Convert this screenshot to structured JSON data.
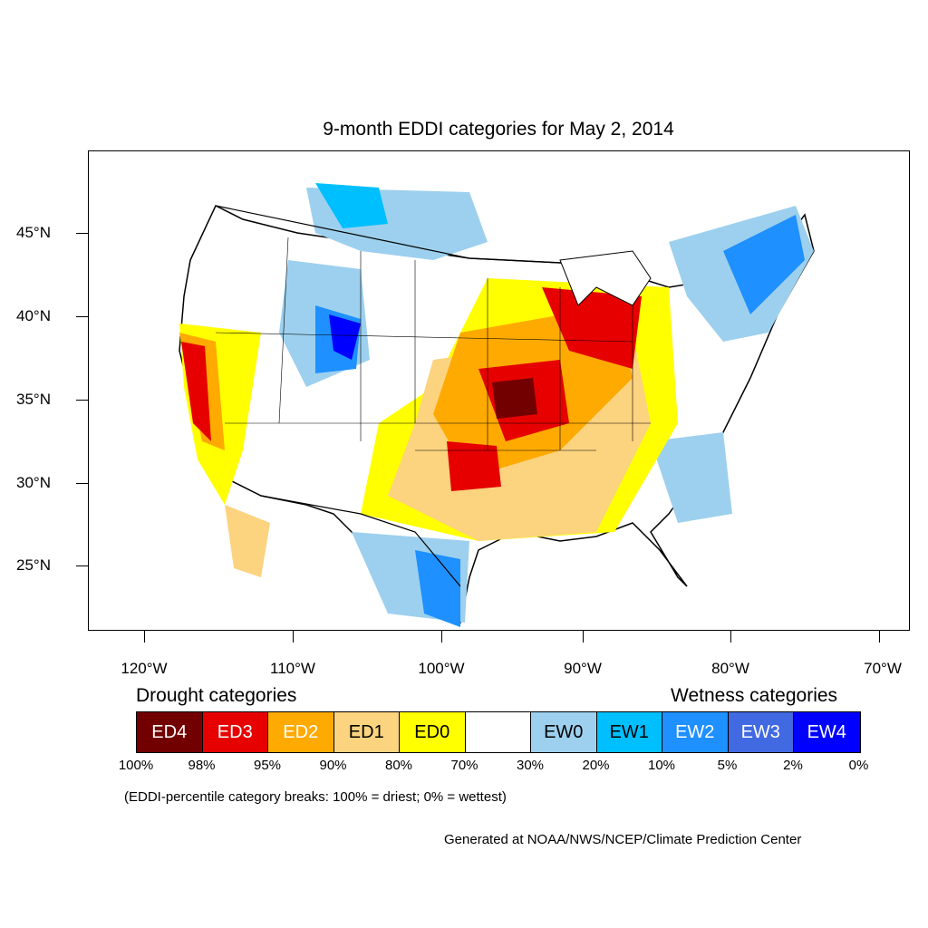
{
  "title": "9-month EDDI categories for May 2, 2014",
  "lat_labels": [
    "45°N",
    "40°N",
    "35°N",
    "30°N",
    "25°N"
  ],
  "lon_labels": [
    "120°W",
    "110°W",
    "100°W",
    "90°W",
    "80°W",
    "70°W"
  ],
  "legend": {
    "drought_heading": "Drought categories",
    "wetness_heading": "Wetness categories",
    "categories": [
      {
        "label": "ED4",
        "color": "#730000",
        "text_color": "#ffffff"
      },
      {
        "label": "ED3",
        "color": "#e60000",
        "text_color": "#ffffff"
      },
      {
        "label": "ED2",
        "color": "#ffaa00",
        "text_color": "#ffffff"
      },
      {
        "label": "ED1",
        "color": "#fcd37f",
        "text_color": "#000000"
      },
      {
        "label": "ED0",
        "color": "#ffff00",
        "text_color": "#000000"
      },
      {
        "label": "",
        "color": "#ffffff",
        "text_color": "#000000"
      },
      {
        "label": "EW0",
        "color": "#9dd0ee",
        "text_color": "#000000"
      },
      {
        "label": "EW1",
        "color": "#00bfff",
        "text_color": "#000000"
      },
      {
        "label": "EW2",
        "color": "#1e90ff",
        "text_color": "#ffffff"
      },
      {
        "label": "EW3",
        "color": "#4169e1",
        "text_color": "#ffffff"
      },
      {
        "label": "EW4",
        "color": "#0000ff",
        "text_color": "#ffffff"
      }
    ],
    "breaks": [
      "100%",
      "98%",
      "95%",
      "90%",
      "80%",
      "70%",
      "30%",
      "20%",
      "10%",
      "5%",
      "2%",
      "0%"
    ]
  },
  "note": "(EDDI-percentile category breaks: 100% = driest; 0% = wettest)",
  "credit": "Generated at NOAA/NWS/NCEP/Climate Prediction Center"
}
